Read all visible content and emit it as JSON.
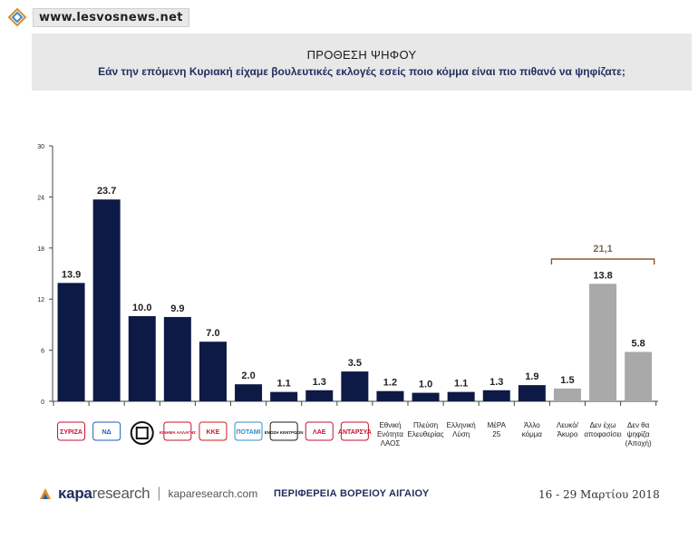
{
  "site": {
    "url": "www.lesvosnews.net"
  },
  "header": {
    "title": "ΠΡΟΘΕΣΗ ΨΗΦΟΥ",
    "subtitle": "Εάν την επόμενη Κυριακή είχαμε βουλευτικές εκλογές εσείς ποιο κόμμα είναι πιο πιθανό να ψηφίζατε;"
  },
  "colors": {
    "dark_bar": "#0d1a45",
    "grey_bar": "#a9a9a9",
    "bracket": "#8b5a2b"
  },
  "chart_data": {
    "type": "bar",
    "ylim": [
      0,
      30
    ],
    "yticks": [
      0,
      6,
      12,
      18,
      24,
      30
    ],
    "grid": false,
    "categories": [
      "ΣΥΡΙΖΑ",
      "ΝΔ",
      "Χρυσή Αυγή",
      "Κίνημα Αλλαγής",
      "ΚΚΕ",
      "Ποτάμι",
      "Ένωση Κεντρώων",
      "ΛΑΕ",
      "ΑΝΤΑΡΣΥΑ",
      "Εθνική Ενότητα ΛΑΟΣ",
      "Πλεύση Ελευθερίας",
      "Ελληνική Λύση",
      "ΜέΡΑ 25",
      "Άλλο κόμμα",
      "Λευκό/ Άκυρο",
      "Δεν έχω αποφασίσει",
      "Δεν θα ψηφίζα (Αποχή)"
    ],
    "values": [
      13.9,
      23.7,
      10.0,
      9.9,
      7.0,
      2.0,
      1.1,
      1.3,
      3.5,
      1.2,
      1.0,
      1.1,
      1.3,
      1.9,
      1.5,
      13.8,
      5.8
    ],
    "value_labels": [
      "13.9",
      "23.7",
      "10.0",
      "9.9",
      "7.0",
      "2.0",
      "1.1",
      "1.3",
      "3.5",
      "1.2",
      "1.0",
      "1.1",
      "1.3",
      "1.9",
      "1.5",
      "13.8",
      "5.8"
    ],
    "bar_styles": [
      "dark",
      "dark",
      "dark",
      "dark",
      "dark",
      "dark",
      "dark",
      "dark",
      "dark",
      "dark",
      "dark",
      "dark",
      "dark",
      "dark",
      "grey",
      "grey",
      "grey"
    ],
    "x_text_labels": [
      null,
      null,
      null,
      null,
      null,
      null,
      null,
      null,
      null,
      [
        "Εθνική",
        "Ενότητα",
        "ΛΑΟΣ"
      ],
      [
        "Πλεύση",
        "Ελευθερίας"
      ],
      [
        "Ελληνική",
        "Λύση"
      ],
      [
        "ΜέΡΑ",
        "25"
      ],
      [
        "Άλλο",
        "κόμμα"
      ],
      [
        "Λευκό/",
        "Άκυρο"
      ],
      [
        "Δεν έχω",
        "αποφασίσει"
      ],
      [
        "Δεν θα",
        "ψηφίζα",
        "(Αποχή)"
      ]
    ],
    "annotation": {
      "label": "21,1",
      "from_index": 14,
      "to_index": 16
    }
  },
  "logos": [
    {
      "name": "syriza-logo",
      "text": "ΣΥΡΙΖΑ",
      "color": "#c8102e"
    },
    {
      "name": "nd-logo",
      "text": "ΝΔ",
      "color": "#1f5fb5"
    },
    {
      "name": "golden-dawn-logo",
      "text": "",
      "color": "#111111"
    },
    {
      "name": "kinal-logo",
      "text": "ΚΙΝΗΜΑ ΑΛΛΑΓΗΣ",
      "color": "#c8102e"
    },
    {
      "name": "kke-logo",
      "text": "ΚΚΕ",
      "color": "#d01b1b"
    },
    {
      "name": "potami-logo",
      "text": "ΠΟΤΑΜΙ",
      "color": "#2d8ccf"
    },
    {
      "name": "enosi-kentroon-logo",
      "text": "ΕΝΩΣΗ ΚΕΝΤΡΩΩΝ",
      "color": "#1a1a1a"
    },
    {
      "name": "lae-logo",
      "text": "ΛΑΕ",
      "color": "#c8102e"
    },
    {
      "name": "antarsya-logo",
      "text": "ΑΝΤΑΡΣΥΑ",
      "color": "#c8102e"
    }
  ],
  "footer": {
    "brand_strong": "κapa",
    "brand_light": "research",
    "brand_separator": "|",
    "brand_url": "kaparesearch.com",
    "region": "ΠΕΡΙΦΕΡΕΙΑ ΒΟΡΕΙΟΥ ΑΙΓΑΙΟΥ",
    "dates": "16 - 29 Μαρτίου 2018"
  }
}
